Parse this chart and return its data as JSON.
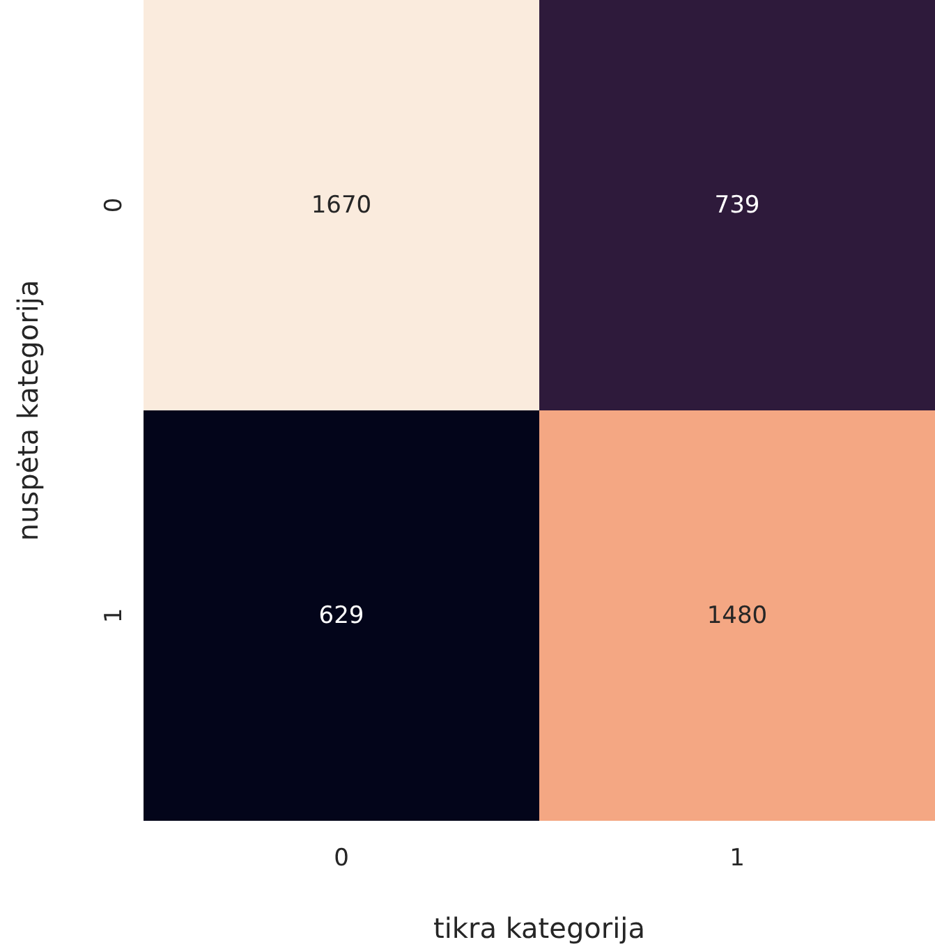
{
  "chart_data": {
    "type": "heatmap",
    "categories": [
      "0",
      "1"
    ],
    "y_categories": [
      "0",
      "1"
    ],
    "cells": [
      [
        1670,
        739
      ],
      [
        629,
        1480
      ]
    ],
    "xlabel": "tikra kategorija",
    "ylabel": "nuspėta kategorija",
    "data_labels": true
  }
}
